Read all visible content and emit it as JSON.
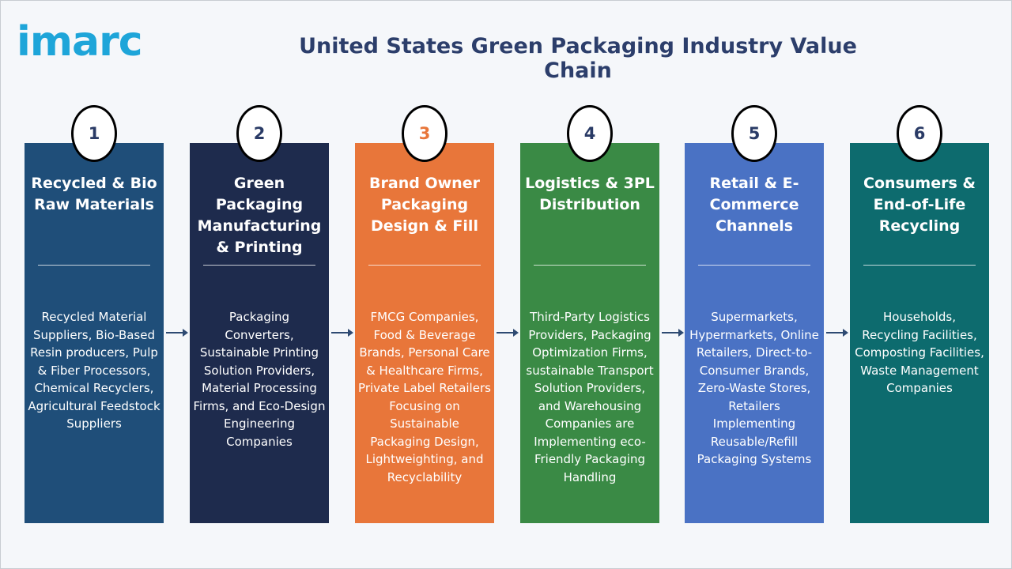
{
  "logo_text": "imarc",
  "title": "United States Green Packaging Industry Value Chain",
  "colors": {
    "title": "#2c3e6b",
    "logo": "#1ea5d9",
    "arrow": "#2e4a72",
    "steps": [
      "#1f4e79",
      "#1e2b4d",
      "#e8763a",
      "#3a8a45",
      "#4a72c4",
      "#0d6b6e"
    ]
  },
  "steps": [
    {
      "number": "1",
      "title": "Recycled & Bio Raw Materials",
      "description": "Recycled Material Suppliers, Bio-Based Resin producers, Pulp & Fiber Processors, Chemical Recyclers, Agricultural Feedstock Suppliers"
    },
    {
      "number": "2",
      "title": "Green Packaging Manufacturing & Printing",
      "description": "Packaging Converters, Sustainable Printing Solution Providers, Material Processing Firms, and Eco-Design Engineering Companies"
    },
    {
      "number": "3",
      "title": "Brand Owner Packaging Design & Fill",
      "description": "FMCG Companies, Food & Beverage Brands, Personal Care & Healthcare Firms, Private Label Retailers Focusing on Sustainable Packaging Design, Lightweighting, and Recyclability"
    },
    {
      "number": "4",
      "title": "Logistics & 3PL Distribution",
      "description": "Third-Party Logistics Providers, Packaging Optimization Firms, sustainable Transport Solution Providers, and Warehousing Companies are Implementing eco-Friendly Packaging Handling"
    },
    {
      "number": "5",
      "title": "Retail & E-Commerce Channels",
      "description": "Supermarkets, Hypermarkets, Online Retailers, Direct-to-Consumer Brands, Zero-Waste Stores, Retailers Implementing Reusable/Refill Packaging Systems"
    },
    {
      "number": "6",
      "title": "Consumers & End-of-Life Recycling",
      "description": "Households, Recycling Facilities, Composting Facilities, Waste Management Companies"
    }
  ]
}
